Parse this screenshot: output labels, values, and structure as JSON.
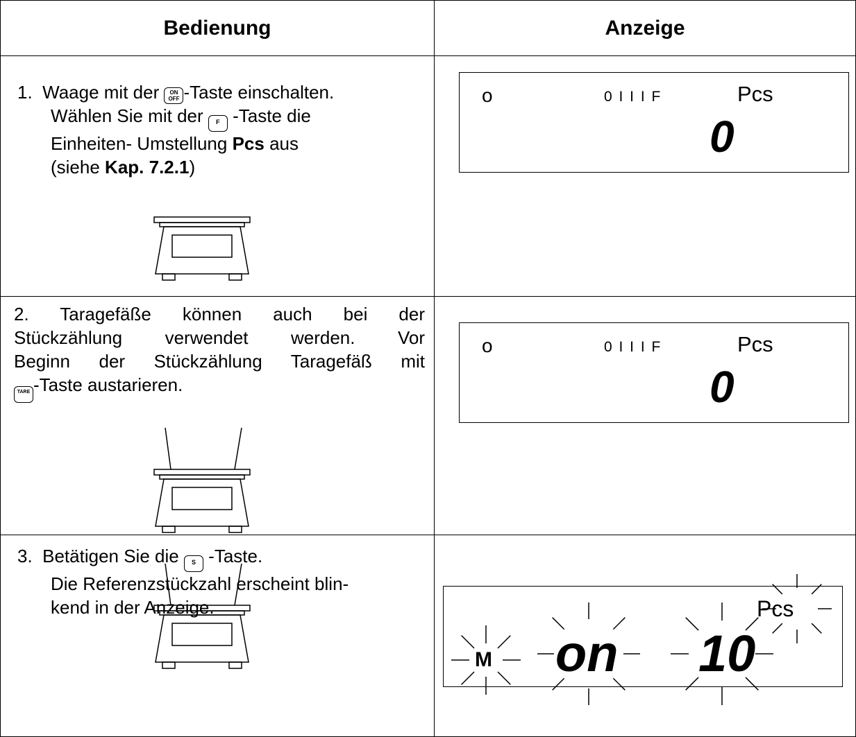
{
  "table": {
    "header": [
      "Bedienung",
      "Anzeige"
    ],
    "rows": [
      {
        "step": [
          [
            "1.  Waage mit der ",
            {
              "key": [
                "ON",
                "OFF"
              ]
            },
            "-Taste einschalten."
          ],
          [
            "Wählen Sie mit der ",
            {
              "key": [
                "F"
              ]
            },
            " -Taste die"
          ],
          [
            "Einheiten- Umstellung ",
            {
              "bold": "Pcs"
            },
            " aus"
          ],
          [
            "(siehe ",
            {
              "bold": "Kap. 7.2.1"
            },
            ")"
          ]
        ],
        "display": {
          "indicator": "o",
          "status": "0 I I I F",
          "unit": "Pcs",
          "value": "0"
        }
      },
      {
        "step": [
          [
            "2. Taragefäße können auch bei der"
          ],
          [
            "Stückzählung verwendet werden. Vor"
          ],
          [
            "Beginn der Stückzählung Taragefäß mit"
          ],
          [
            {
              "key": [
                "TARE"
              ]
            },
            "-Taste austarieren."
          ]
        ],
        "display": {
          "indicator": "o",
          "status": "0 I I I F",
          "unit": "Pcs",
          "value": "0"
        }
      },
      {
        "step": [
          [
            "3.  Betätigen Sie die ",
            {
              "key": [
                "S"
              ]
            },
            " -Taste."
          ],
          [
            "Die Referenzstückzahl erscheint blin-"
          ],
          [
            "kend in der Anzeige."
          ]
        ],
        "display": {
          "indicator": "M",
          "mode": "on",
          "value": "10",
          "unit": "Pcs"
        }
      }
    ]
  }
}
